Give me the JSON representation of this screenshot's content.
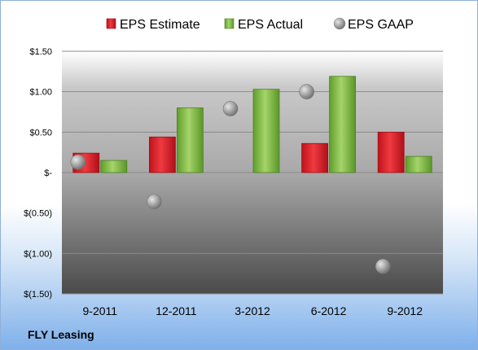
{
  "footer_label": "FLY Leasing",
  "chart_data": {
    "type": "bar",
    "categories": [
      "9-2011",
      "12-2011",
      "3-2012",
      "6-2012",
      "9-2012"
    ],
    "series": [
      {
        "name": "EPS Estimate",
        "kind": "bar",
        "color": "#e8202a",
        "values": [
          0.24,
          0.44,
          null,
          0.36,
          0.5
        ]
      },
      {
        "name": "EPS Actual",
        "kind": "bar",
        "color": "#8bc34a",
        "values": [
          0.15,
          0.8,
          1.03,
          1.19,
          0.2
        ]
      },
      {
        "name": "EPS GAAP",
        "kind": "marker",
        "color": "#a8a8a8",
        "values": [
          0.13,
          -0.36,
          0.79,
          1.0,
          -1.16
        ]
      }
    ],
    "yticks": [
      1.5,
      1.0,
      0.5,
      0,
      -0.5,
      -1.0,
      -1.5
    ],
    "ytick_labels": [
      "$1.50",
      "$1.00",
      "$0.50",
      "$-",
      "$(0.50)",
      "$(1.00)",
      "$(1.50)"
    ],
    "ylim": [
      -1.5,
      1.5
    ],
    "grid": true,
    "legend_position": "top"
  }
}
